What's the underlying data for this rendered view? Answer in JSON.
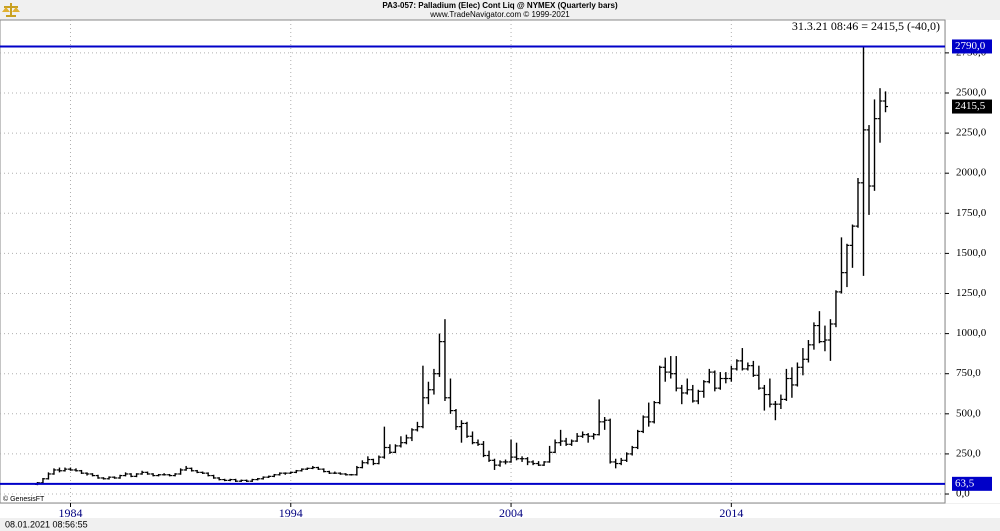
{
  "chart_data": {
    "type": "ohlc",
    "title": "PA3-057:  Palladium (Elec) Cont Liq @ NYMEX  (Quarterly bars)",
    "subtitle": "www.TradeNavigator.com © 1999-2021",
    "quote": "31.3.21 08:46 = 2415,5 (-40,0)",
    "source": "© GenesisFT",
    "timestamp": "08.01.2021 08:56:55",
    "color": "#000000",
    "level_color": "#0000c8",
    "grid": true,
    "xlim": [
      1980.8,
      2023.7
    ],
    "xticks": [
      1984,
      1994,
      2004,
      2014
    ],
    "ylim": [
      -56,
      2955
    ],
    "yticks": [
      {
        "value": 0,
        "label": "0,0"
      },
      {
        "value": 250,
        "label": "250,0"
      },
      {
        "value": 500,
        "label": "500,0"
      },
      {
        "value": 750,
        "label": "750,0"
      },
      {
        "value": 1000,
        "label": "1000,0"
      },
      {
        "value": 1250,
        "label": "1250,0"
      },
      {
        "value": 1500,
        "label": "1500,0"
      },
      {
        "value": 1750,
        "label": "1750,0"
      },
      {
        "value": 2000,
        "label": "2000,0"
      },
      {
        "value": 2250,
        "label": "2250,0"
      },
      {
        "value": 2500,
        "label": "2500,0"
      },
      {
        "value": 2750,
        "label": "2750,0"
      }
    ],
    "levels": [
      {
        "value": 2790,
        "label": "2790,0"
      },
      {
        "value": 63.5,
        "label": "63,5"
      }
    ],
    "last_price": {
      "value": 2415.5,
      "label": "2415,5"
    },
    "x": [
      1982.5,
      1982.75,
      1983,
      1983.25,
      1983.5,
      1983.75,
      1984,
      1984.25,
      1984.5,
      1984.75,
      1985,
      1985.25,
      1985.5,
      1985.75,
      1986,
      1986.25,
      1986.5,
      1986.75,
      1987,
      1987.25,
      1987.5,
      1987.75,
      1988,
      1988.25,
      1988.5,
      1988.75,
      1989,
      1989.25,
      1989.5,
      1989.75,
      1990,
      1990.25,
      1990.5,
      1990.75,
      1991,
      1991.25,
      1991.5,
      1991.75,
      1992,
      1992.25,
      1992.5,
      1992.75,
      1993,
      1993.25,
      1993.5,
      1993.75,
      1994,
      1994.25,
      1994.5,
      1994.75,
      1995,
      1995.25,
      1995.5,
      1995.75,
      1996,
      1996.25,
      1996.5,
      1996.75,
      1997,
      1997.25,
      1997.5,
      1997.75,
      1998,
      1998.25,
      1998.5,
      1998.75,
      1999,
      1999.25,
      1999.5,
      1999.75,
      2000,
      2000.25,
      2000.5,
      2000.75,
      2001,
      2001.25,
      2001.5,
      2001.75,
      2002,
      2002.25,
      2002.5,
      2002.75,
      2003,
      2003.25,
      2003.5,
      2003.75,
      2004,
      2004.25,
      2004.5,
      2004.75,
      2005,
      2005.25,
      2005.5,
      2005.75,
      2006,
      2006.25,
      2006.5,
      2006.75,
      2007,
      2007.25,
      2007.5,
      2007.75,
      2008,
      2008.25,
      2008.5,
      2008.75,
      2009,
      2009.25,
      2009.5,
      2009.75,
      2010,
      2010.25,
      2010.5,
      2010.75,
      2011,
      2011.25,
      2011.5,
      2011.75,
      2012,
      2012.25,
      2012.5,
      2012.75,
      2013,
      2013.25,
      2013.5,
      2013.75,
      2014,
      2014.25,
      2014.5,
      2014.75,
      2015,
      2015.25,
      2015.5,
      2015.75,
      2016,
      2016.25,
      2016.5,
      2016.75,
      2017,
      2017.25,
      2017.5,
      2017.75,
      2018,
      2018.25,
      2018.5,
      2018.75,
      2019,
      2019.25,
      2019.5,
      2019.75,
      2020,
      2020.25,
      2020.5,
      2020.75,
      2021
    ],
    "ohlc": [
      [
        60,
        75,
        55,
        70
      ],
      [
        70,
        100,
        65,
        95
      ],
      [
        95,
        135,
        90,
        125
      ],
      [
        125,
        160,
        120,
        150
      ],
      [
        150,
        165,
        135,
        145
      ],
      [
        145,
        165,
        140,
        155
      ],
      [
        155,
        165,
        145,
        150
      ],
      [
        150,
        160,
        140,
        145
      ],
      [
        145,
        150,
        125,
        130
      ],
      [
        130,
        135,
        115,
        125
      ],
      [
        125,
        130,
        110,
        115
      ],
      [
        115,
        120,
        95,
        100
      ],
      [
        100,
        105,
        90,
        95
      ],
      [
        95,
        110,
        90,
        105
      ],
      [
        105,
        110,
        95,
        100
      ],
      [
        100,
        120,
        95,
        115
      ],
      [
        115,
        135,
        110,
        125
      ],
      [
        125,
        130,
        105,
        110
      ],
      [
        110,
        130,
        105,
        125
      ],
      [
        125,
        145,
        120,
        135
      ],
      [
        135,
        140,
        120,
        125
      ],
      [
        125,
        130,
        110,
        115
      ],
      [
        115,
        125,
        110,
        120
      ],
      [
        120,
        130,
        115,
        120
      ],
      [
        120,
        125,
        110,
        115
      ],
      [
        115,
        130,
        110,
        125
      ],
      [
        125,
        160,
        120,
        150
      ],
      [
        150,
        175,
        145,
        160
      ],
      [
        160,
        165,
        140,
        145
      ],
      [
        145,
        150,
        130,
        135
      ],
      [
        135,
        140,
        125,
        130
      ],
      [
        130,
        135,
        110,
        115
      ],
      [
        115,
        120,
        95,
        100
      ],
      [
        100,
        105,
        85,
        90
      ],
      [
        90,
        95,
        80,
        85
      ],
      [
        85,
        95,
        80,
        90
      ],
      [
        90,
        95,
        75,
        80
      ],
      [
        80,
        90,
        75,
        85
      ],
      [
        85,
        90,
        75,
        80
      ],
      [
        80,
        95,
        75,
        90
      ],
      [
        90,
        100,
        85,
        95
      ],
      [
        95,
        110,
        90,
        105
      ],
      [
        105,
        115,
        100,
        110
      ],
      [
        110,
        125,
        105,
        120
      ],
      [
        120,
        135,
        115,
        130
      ],
      [
        130,
        135,
        120,
        130
      ],
      [
        130,
        140,
        125,
        135
      ],
      [
        135,
        150,
        130,
        145
      ],
      [
        145,
        160,
        140,
        155
      ],
      [
        155,
        165,
        150,
        160
      ],
      [
        160,
        175,
        155,
        165
      ],
      [
        165,
        170,
        150,
        155
      ],
      [
        155,
        160,
        135,
        140
      ],
      [
        140,
        145,
        125,
        130
      ],
      [
        130,
        140,
        125,
        130
      ],
      [
        130,
        135,
        120,
        125
      ],
      [
        125,
        130,
        115,
        120
      ],
      [
        120,
        125,
        115,
        120
      ],
      [
        120,
        175,
        115,
        165
      ],
      [
        165,
        210,
        160,
        195
      ],
      [
        195,
        235,
        185,
        215
      ],
      [
        215,
        220,
        180,
        190
      ],
      [
        190,
        240,
        185,
        230
      ],
      [
        230,
        420,
        220,
        290
      ],
      [
        290,
        310,
        250,
        260
      ],
      [
        260,
        310,
        255,
        300
      ],
      [
        300,
        360,
        290,
        320
      ],
      [
        320,
        370,
        310,
        350
      ],
      [
        350,
        410,
        330,
        400
      ],
      [
        400,
        450,
        390,
        420
      ],
      [
        420,
        800,
        410,
        600
      ],
      [
        600,
        700,
        560,
        650
      ],
      [
        650,
        780,
        620,
        750
      ],
      [
        750,
        1000,
        730,
        950
      ],
      [
        950,
        1090,
        580,
        600
      ],
      [
        600,
        720,
        500,
        520
      ],
      [
        520,
        530,
        400,
        420
      ],
      [
        420,
        460,
        320,
        440
      ],
      [
        440,
        450,
        350,
        360
      ],
      [
        360,
        390,
        310,
        320
      ],
      [
        320,
        340,
        300,
        310
      ],
      [
        310,
        330,
        230,
        240
      ],
      [
        240,
        270,
        200,
        210
      ],
      [
        210,
        220,
        150,
        180
      ],
      [
        180,
        210,
        170,
        200
      ],
      [
        200,
        215,
        185,
        200
      ],
      [
        200,
        340,
        195,
        230
      ],
      [
        230,
        320,
        210,
        220
      ],
      [
        220,
        235,
        200,
        220
      ],
      [
        220,
        230,
        180,
        200
      ],
      [
        200,
        210,
        180,
        190
      ],
      [
        190,
        205,
        175,
        180
      ],
      [
        180,
        205,
        175,
        200
      ],
      [
        200,
        300,
        195,
        260
      ],
      [
        260,
        340,
        255,
        320
      ],
      [
        320,
        400,
        300,
        330
      ],
      [
        330,
        350,
        300,
        310
      ],
      [
        310,
        340,
        300,
        330
      ],
      [
        330,
        380,
        325,
        360
      ],
      [
        360,
        390,
        350,
        370
      ],
      [
        370,
        380,
        320,
        360
      ],
      [
        360,
        380,
        340,
        370
      ],
      [
        370,
        590,
        365,
        450
      ],
      [
        450,
        480,
        400,
        460
      ],
      [
        460,
        470,
        190,
        200
      ],
      [
        200,
        220,
        160,
        190
      ],
      [
        190,
        225,
        180,
        210
      ],
      [
        210,
        260,
        200,
        250
      ],
      [
        250,
        300,
        240,
        290
      ],
      [
        290,
        400,
        280,
        390
      ],
      [
        390,
        490,
        380,
        480
      ],
      [
        480,
        570,
        420,
        450
      ],
      [
        450,
        580,
        440,
        570
      ],
      [
        570,
        800,
        560,
        790
      ],
      [
        790,
        850,
        700,
        760
      ],
      [
        760,
        860,
        720,
        750
      ],
      [
        750,
        860,
        640,
        660
      ],
      [
        660,
        680,
        560,
        630
      ],
      [
        630,
        720,
        620,
        650
      ],
      [
        650,
        680,
        570,
        580
      ],
      [
        580,
        650,
        560,
        640
      ],
      [
        640,
        710,
        600,
        700
      ],
      [
        700,
        780,
        690,
        760
      ],
      [
        760,
        770,
        640,
        660
      ],
      [
        660,
        760,
        650,
        720
      ],
      [
        720,
        760,
        690,
        720
      ],
      [
        720,
        800,
        700,
        780
      ],
      [
        780,
        840,
        770,
        830
      ],
      [
        830,
        910,
        770,
        780
      ],
      [
        780,
        820,
        770,
        800
      ],
      [
        800,
        830,
        730,
        740
      ],
      [
        740,
        800,
        650,
        660
      ],
      [
        660,
        680,
        520,
        620
      ],
      [
        620,
        720,
        540,
        560
      ],
      [
        560,
        580,
        460,
        560
      ],
      [
        560,
        620,
        530,
        590
      ],
      [
        590,
        780,
        580,
        720
      ],
      [
        720,
        790,
        600,
        680
      ],
      [
        680,
        820,
        670,
        790
      ],
      [
        790,
        910,
        740,
        840
      ],
      [
        840,
        960,
        820,
        930
      ],
      [
        930,
        1070,
        900,
        1050
      ],
      [
        1050,
        1140,
        940,
        950
      ],
      [
        950,
        1050,
        890,
        960
      ],
      [
        960,
        1090,
        830,
        1060
      ],
      [
        1060,
        1270,
        1040,
        1260
      ],
      [
        1260,
        1600,
        1250,
        1380
      ],
      [
        1380,
        1560,
        1290,
        1550
      ],
      [
        1550,
        1680,
        1410,
        1670
      ],
      [
        1670,
        1970,
        1660,
        1940
      ],
      [
        1940,
        2790,
        1360,
        2270
      ],
      [
        2270,
        2300,
        1740,
        1920
      ],
      [
        1920,
        2460,
        1890,
        2340
      ],
      [
        2340,
        2530,
        2190,
        2450
      ],
      [
        2450,
        2510,
        2380,
        2415.5
      ]
    ]
  }
}
